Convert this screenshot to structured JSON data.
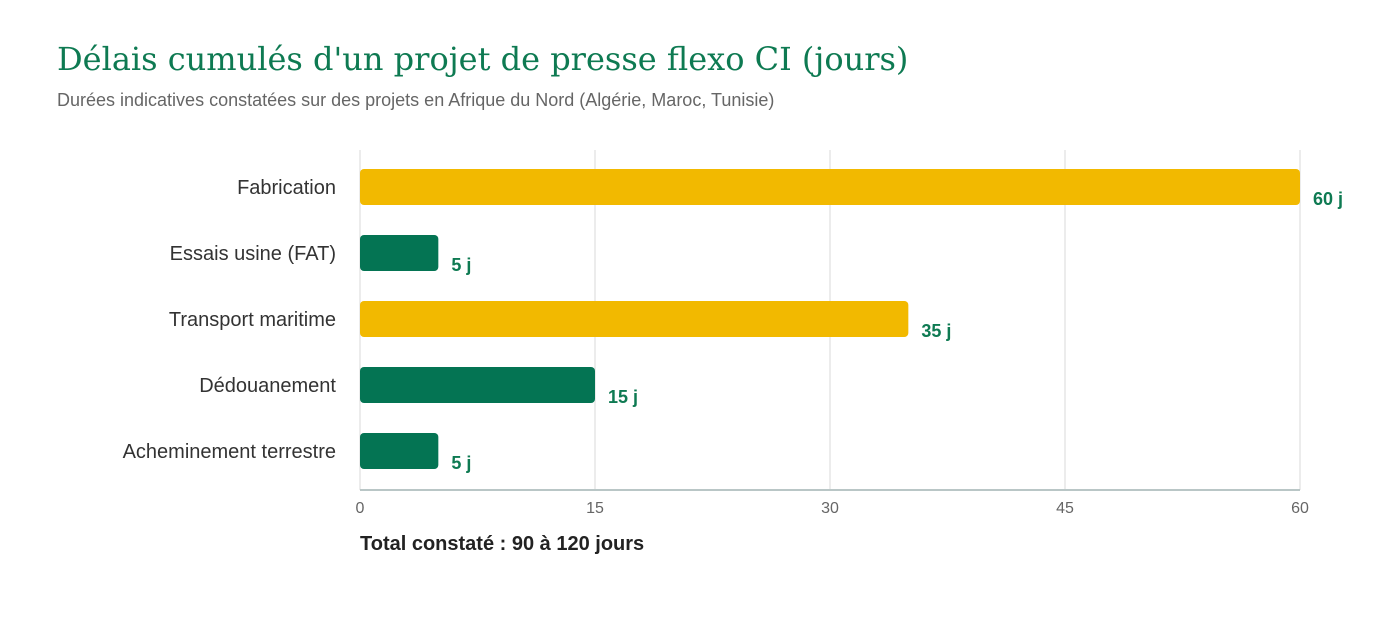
{
  "header": {
    "title": "Délais cumulés d'un projet de presse flexo CI (jours)",
    "subtitle": "Durées indicatives constatées sur des projets en Afrique du Nord (Algérie, Maroc, Tunisie)"
  },
  "footer": {
    "total_text": "Total constaté : 90 à 120 jours"
  },
  "colors": {
    "title": "#0e7a52",
    "yellow": "#f2b900",
    "green": "#047453",
    "label": "#0e7a52",
    "grid": "#e6e6e6",
    "axis": "#b9c6c6"
  },
  "chart_data": {
    "type": "bar",
    "orientation": "horizontal",
    "title": "Délais cumulés d'un projet de presse flexo CI (jours)",
    "subtitle": "Durées indicatives constatées sur des projets en Afrique du Nord (Algérie, Maroc, Tunisie)",
    "categories": [
      "Fabrication",
      "Essais usine (FAT)",
      "Transport maritime",
      "Dédouanement",
      "Acheminement terrestre"
    ],
    "values": [
      60,
      5,
      35,
      15,
      5
    ],
    "data_labels": [
      "60 j",
      "5 j",
      "35 j",
      "15 j",
      "5 j"
    ],
    "bar_colors": [
      "#f2b900",
      "#047453",
      "#f2b900",
      "#047453",
      "#047453"
    ],
    "xlim": [
      0,
      60
    ],
    "xticks": [
      "0",
      "15",
      "30",
      "45",
      "60"
    ],
    "xtick_values": [
      0,
      15,
      30,
      45,
      60
    ],
    "grid": true
  }
}
